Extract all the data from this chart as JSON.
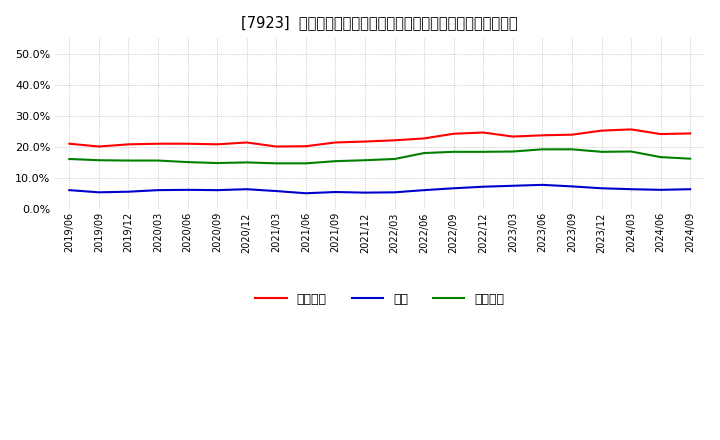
{
  "title": "[7923]  売上債権、在庫、買入債務の総資産に対する比率の推移",
  "legend_labels": [
    "売上債権",
    "在庫",
    "買入債務"
  ],
  "line_colors": [
    "#ff0000",
    "#0000cc",
    "#008000"
  ],
  "ylim": [
    0.0,
    0.55
  ],
  "yticks": [
    0.0,
    0.1,
    0.2,
    0.3,
    0.4,
    0.5
  ],
  "x_labels": [
    "2019/06",
    "2019/09",
    "2019/12",
    "2020/03",
    "2020/06",
    "2020/09",
    "2020/12",
    "2021/03",
    "2021/06",
    "2021/09",
    "2021/12",
    "2022/03",
    "2022/06",
    "2022/09",
    "2022/12",
    "2023/03",
    "2023/06",
    "2023/09",
    "2023/12",
    "2024/03",
    "2024/06",
    "2024/09"
  ],
  "receivables": [
    0.211,
    0.202,
    0.209,
    0.211,
    0.211,
    0.209,
    0.215,
    0.202,
    0.203,
    0.215,
    0.218,
    0.222,
    0.228,
    0.243,
    0.247,
    0.234,
    0.238,
    0.24,
    0.253,
    0.257,
    0.242,
    0.244
  ],
  "inventory": [
    0.062,
    0.055,
    0.057,
    0.062,
    0.063,
    0.062,
    0.065,
    0.059,
    0.052,
    0.056,
    0.054,
    0.055,
    0.062,
    0.068,
    0.073,
    0.076,
    0.079,
    0.074,
    0.068,
    0.065,
    0.063,
    0.065
  ],
  "payables": [
    0.162,
    0.158,
    0.157,
    0.157,
    0.152,
    0.149,
    0.151,
    0.148,
    0.148,
    0.155,
    0.158,
    0.162,
    0.181,
    0.185,
    0.185,
    0.186,
    0.193,
    0.193,
    0.185,
    0.186,
    0.168,
    0.163
  ],
  "bg_color": "#ffffff",
  "grid_color": "#999999"
}
